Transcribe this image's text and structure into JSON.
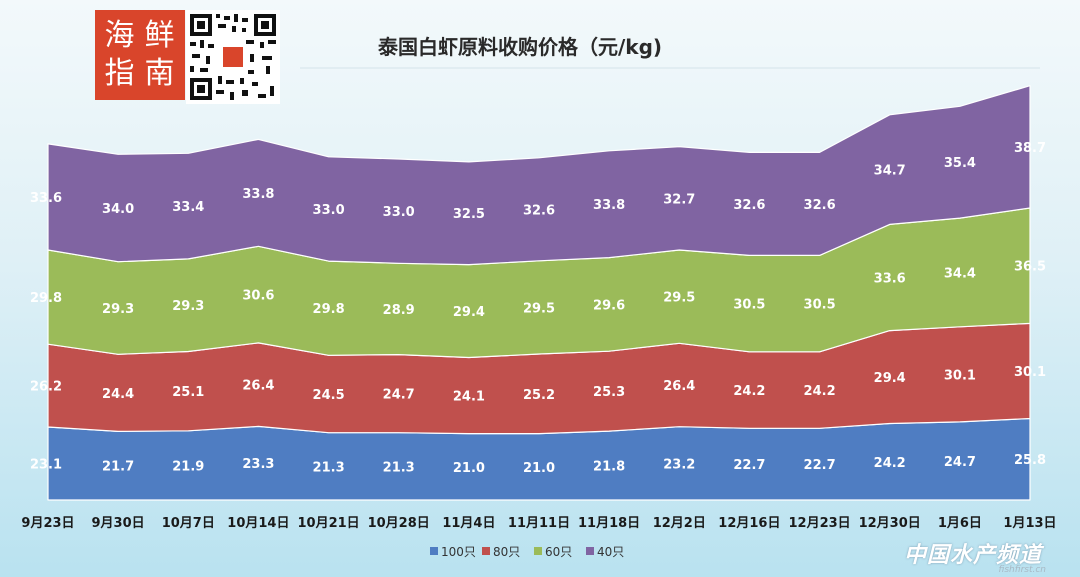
{
  "header": {
    "title": "泰国白虾原料收购价格（元/kg)"
  },
  "logo": {
    "chars": [
      "海",
      "鲜",
      "指",
      "南"
    ]
  },
  "watermark": {
    "main": "中国水产频道",
    "sub": "fishfirst.cn"
  },
  "colors": {
    "s100": "#4f7dc2",
    "s80": "#c0504d",
    "s60": "#9bbb59",
    "s40": "#8064a2",
    "label": "#ffffff",
    "axis_text": "#1a1a1a"
  },
  "chart_data": {
    "type": "area",
    "stacked": true,
    "title": "泰国白虾原料收购价格（元/kg)",
    "categories": [
      "9月23日",
      "9月30日",
      "10月7日",
      "10月14日",
      "10月21日",
      "10月28日",
      "11月4日",
      "11月11日",
      "11月18日",
      "12月2日",
      "12月16日",
      "12月23日",
      "12月30日",
      "1月6日",
      "1月13日"
    ],
    "series": [
      {
        "name": "100只",
        "color": "#4f7dc2",
        "values": [
          23.1,
          21.7,
          21.9,
          23.3,
          21.3,
          21.3,
          21.0,
          21.0,
          21.8,
          23.2,
          22.7,
          22.7,
          24.2,
          24.7,
          25.8
        ]
      },
      {
        "name": "80只",
        "color": "#c0504d",
        "values": [
          26.2,
          24.4,
          25.1,
          26.4,
          24.5,
          24.7,
          24.1,
          25.2,
          25.3,
          26.4,
          24.2,
          24.2,
          29.4,
          30.1,
          30.1
        ]
      },
      {
        "name": "60只",
        "color": "#9bbb59",
        "values": [
          29.8,
          29.3,
          29.3,
          30.6,
          29.8,
          28.9,
          29.4,
          29.5,
          29.6,
          29.5,
          30.5,
          30.5,
          33.6,
          34.4,
          36.5
        ]
      },
      {
        "name": "40只",
        "color": "#8064a2",
        "values": [
          33.6,
          34.0,
          33.4,
          33.8,
          33.0,
          33.0,
          32.5,
          32.6,
          33.8,
          32.7,
          32.6,
          32.6,
          34.7,
          35.4,
          38.7
        ]
      }
    ],
    "legend_position": "bottom",
    "grid": false,
    "data_labels": true
  }
}
